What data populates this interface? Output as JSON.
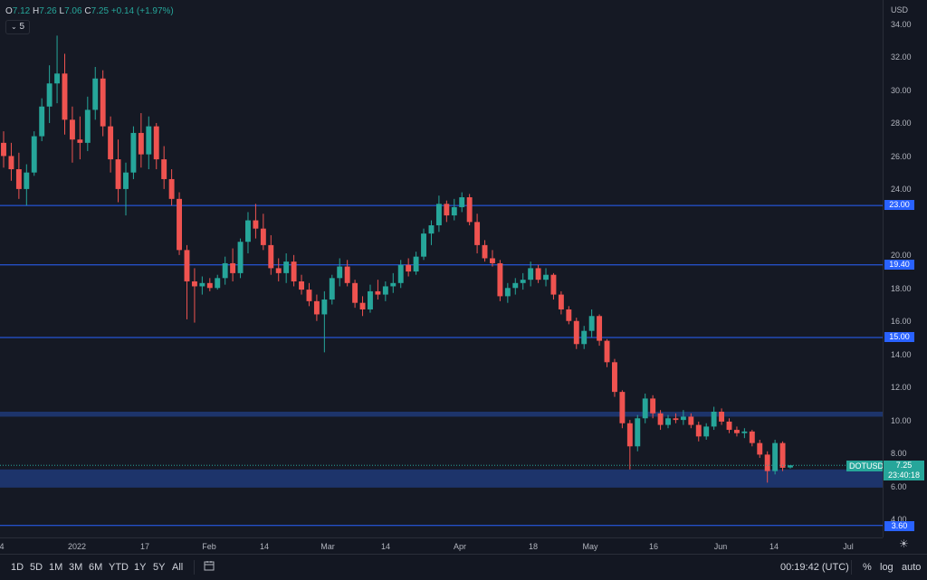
{
  "legend": {
    "open_label": "O",
    "open": "7.12",
    "high_label": "H",
    "high": "7.26",
    "low_label": "L",
    "low": "7.06",
    "close_label": "C",
    "close": "7.25",
    "change": "+0.14 (+1.97%)",
    "interval": "5",
    "interval_icon": "chevron-down-icon"
  },
  "price_axis": {
    "currency": "USD",
    "ticks": [
      "34.00",
      "32.00",
      "30.00",
      "28.00",
      "26.00",
      "24.00",
      "20.00",
      "18.00",
      "16.00",
      "14.00",
      "12.00",
      "10.00",
      "8.00",
      "6.00",
      "4.00"
    ],
    "level_labels": [
      "23.00",
      "19.40",
      "15.00",
      "3.60"
    ],
    "current_price": "7.25",
    "countdown": "23:40:18"
  },
  "symbol": "DOTUSD",
  "time_axis": {
    "ticks": [
      "4",
      "2022",
      "17",
      "Feb",
      "14",
      "Mar",
      "14",
      "Apr",
      "18",
      "May",
      "16",
      "Jun",
      "14",
      "Jul"
    ]
  },
  "bottom_bar": {
    "timeframes": [
      "1D",
      "5D",
      "1M",
      "3M",
      "6M",
      "YTD",
      "1Y",
      "5Y",
      "All"
    ],
    "compare_icon": "calendar-range-icon",
    "clock": "00:19:42 (UTC)",
    "percent_label": "%",
    "log_label": "log",
    "auto_label": "auto",
    "settings_icon": "gear-icon"
  },
  "colors": {
    "up": "#26a69a",
    "down": "#ef5350",
    "level": "#2962ff",
    "zone": "#1e3a78",
    "background": "#151924"
  },
  "chart_data": {
    "type": "candlestick",
    "symbol": "DOTUSD",
    "ylim": [
      3.0,
      35.0
    ],
    "horizontal_levels": [
      23.0,
      19.4,
      15.0,
      3.6
    ],
    "zones": [
      [
        10.2,
        10.5
      ],
      [
        5.9,
        7.0
      ]
    ],
    "series": [
      {
        "values": [
          [
            26.8,
            27.5,
            25.3,
            26.0
          ],
          [
            26.0,
            26.8,
            24.5,
            25.2
          ],
          [
            25.2,
            26.2,
            23.4,
            24.0
          ],
          [
            24.0,
            25.5,
            23.0,
            25.0
          ],
          [
            25.0,
            27.5,
            24.8,
            27.2
          ],
          [
            27.2,
            29.5,
            26.9,
            29.0
          ],
          [
            29.0,
            31.5,
            28.0,
            30.4
          ],
          [
            30.4,
            33.3,
            29.2,
            31.0
          ],
          [
            31.0,
            32.2,
            27.3,
            28.2
          ],
          [
            28.2,
            29.0,
            25.6,
            27.0
          ],
          [
            27.0,
            28.4,
            25.8,
            26.8
          ],
          [
            26.8,
            29.6,
            26.3,
            28.8
          ],
          [
            28.8,
            31.4,
            28.2,
            30.7
          ],
          [
            30.7,
            31.2,
            27.2,
            27.8
          ],
          [
            27.8,
            28.4,
            25.0,
            25.8
          ],
          [
            25.8,
            27.0,
            23.2,
            24.0
          ],
          [
            24.0,
            25.6,
            22.4,
            25.0
          ],
          [
            25.0,
            27.8,
            24.6,
            27.4
          ],
          [
            27.4,
            28.6,
            25.3,
            26.1
          ],
          [
            26.1,
            28.4,
            25.2,
            27.8
          ],
          [
            27.8,
            28.0,
            25.2,
            25.8
          ],
          [
            25.8,
            26.6,
            24.0,
            24.6
          ],
          [
            24.6,
            25.2,
            23.0,
            23.4
          ],
          [
            23.4,
            23.8,
            20.0,
            20.3
          ],
          [
            20.3,
            20.6,
            16.1,
            18.4
          ],
          [
            18.4,
            19.2,
            15.9,
            18.1
          ],
          [
            18.1,
            18.7,
            17.6,
            18.3
          ],
          [
            18.3,
            18.6,
            17.8,
            18.0
          ],
          [
            18.0,
            18.8,
            17.9,
            18.6
          ],
          [
            18.6,
            19.9,
            18.2,
            19.5
          ],
          [
            19.5,
            20.4,
            18.4,
            18.9
          ],
          [
            18.9,
            21.0,
            18.6,
            20.8
          ],
          [
            20.8,
            22.6,
            20.1,
            22.1
          ],
          [
            22.1,
            23.1,
            21.0,
            21.6
          ],
          [
            21.6,
            22.5,
            20.3,
            20.6
          ],
          [
            20.6,
            21.2,
            18.8,
            19.2
          ],
          [
            19.2,
            19.8,
            18.4,
            18.9
          ],
          [
            18.9,
            20.1,
            18.3,
            19.6
          ],
          [
            19.6,
            20.0,
            18.1,
            18.4
          ],
          [
            18.4,
            18.8,
            17.6,
            17.9
          ],
          [
            17.9,
            18.3,
            16.9,
            17.2
          ],
          [
            17.2,
            17.6,
            16.0,
            16.4
          ],
          [
            16.4,
            17.8,
            14.1,
            17.3
          ],
          [
            17.3,
            18.8,
            17.0,
            18.6
          ],
          [
            18.6,
            19.8,
            18.1,
            19.3
          ],
          [
            19.3,
            19.7,
            18.1,
            18.3
          ],
          [
            18.3,
            18.5,
            16.8,
            17.1
          ],
          [
            17.1,
            17.5,
            16.3,
            16.7
          ],
          [
            16.7,
            18.2,
            16.5,
            17.8
          ],
          [
            17.8,
            18.5,
            17.3,
            17.6
          ],
          [
            17.6,
            18.4,
            17.2,
            18.1
          ],
          [
            18.1,
            18.9,
            17.7,
            18.3
          ],
          [
            18.3,
            19.7,
            18.0,
            19.4
          ],
          [
            19.4,
            19.8,
            18.7,
            19.0
          ],
          [
            19.0,
            20.2,
            18.8,
            19.9
          ],
          [
            19.9,
            21.6,
            19.7,
            21.3
          ],
          [
            21.3,
            22.1,
            20.6,
            21.8
          ],
          [
            21.8,
            23.6,
            21.4,
            23.1
          ],
          [
            23.1,
            23.3,
            22.0,
            22.4
          ],
          [
            22.4,
            23.4,
            22.1,
            22.9
          ],
          [
            22.9,
            23.8,
            22.6,
            23.5
          ],
          [
            23.5,
            23.7,
            21.8,
            22.0
          ],
          [
            22.0,
            22.5,
            20.1,
            20.6
          ],
          [
            20.6,
            20.9,
            19.6,
            19.8
          ],
          [
            19.8,
            20.3,
            19.3,
            19.5
          ],
          [
            19.5,
            19.7,
            17.2,
            17.5
          ],
          [
            17.5,
            18.3,
            17.1,
            18.0
          ],
          [
            18.0,
            18.6,
            17.6,
            18.3
          ],
          [
            18.3,
            18.9,
            17.9,
            18.5
          ],
          [
            18.5,
            19.6,
            18.1,
            19.2
          ],
          [
            19.2,
            19.4,
            18.3,
            18.5
          ],
          [
            18.5,
            19.2,
            18.1,
            18.8
          ],
          [
            18.8,
            18.9,
            17.3,
            17.6
          ],
          [
            17.6,
            17.8,
            16.4,
            16.7
          ],
          [
            16.7,
            16.9,
            15.8,
            16.0
          ],
          [
            16.0,
            16.2,
            14.3,
            14.6
          ],
          [
            14.6,
            15.7,
            14.3,
            15.4
          ],
          [
            15.4,
            16.7,
            15.0,
            16.3
          ],
          [
            16.3,
            16.4,
            14.5,
            14.8
          ],
          [
            14.8,
            14.9,
            13.2,
            13.5
          ],
          [
            13.5,
            13.7,
            11.4,
            11.7
          ],
          [
            11.7,
            11.8,
            9.5,
            9.8
          ],
          [
            9.8,
            10.0,
            7.0,
            8.4
          ],
          [
            8.4,
            10.3,
            8.1,
            10.1
          ],
          [
            10.1,
            11.6,
            9.8,
            11.3
          ],
          [
            11.3,
            11.5,
            10.1,
            10.4
          ],
          [
            10.4,
            10.6,
            9.4,
            9.7
          ],
          [
            9.7,
            10.3,
            9.5,
            10.1
          ],
          [
            10.1,
            10.4,
            9.8,
            10.0
          ],
          [
            10.0,
            10.6,
            9.7,
            10.2
          ],
          [
            10.2,
            10.4,
            9.5,
            9.7
          ],
          [
            9.7,
            9.9,
            8.7,
            9.0
          ],
          [
            9.0,
            9.8,
            8.8,
            9.6
          ],
          [
            9.6,
            10.8,
            9.4,
            10.5
          ],
          [
            10.5,
            10.7,
            9.7,
            9.9
          ],
          [
            9.9,
            10.1,
            9.2,
            9.4
          ],
          [
            9.4,
            9.6,
            9.0,
            9.2
          ],
          [
            9.2,
            9.5,
            8.9,
            9.3
          ],
          [
            9.3,
            9.4,
            8.4,
            8.6
          ],
          [
            8.6,
            8.8,
            7.7,
            7.9
          ],
          [
            7.9,
            8.1,
            6.2,
            6.9
          ],
          [
            6.9,
            8.8,
            6.7,
            8.6
          ],
          [
            8.6,
            8.7,
            6.9,
            7.1
          ],
          [
            7.12,
            7.26,
            7.06,
            7.25
          ]
        ]
      }
    ]
  }
}
